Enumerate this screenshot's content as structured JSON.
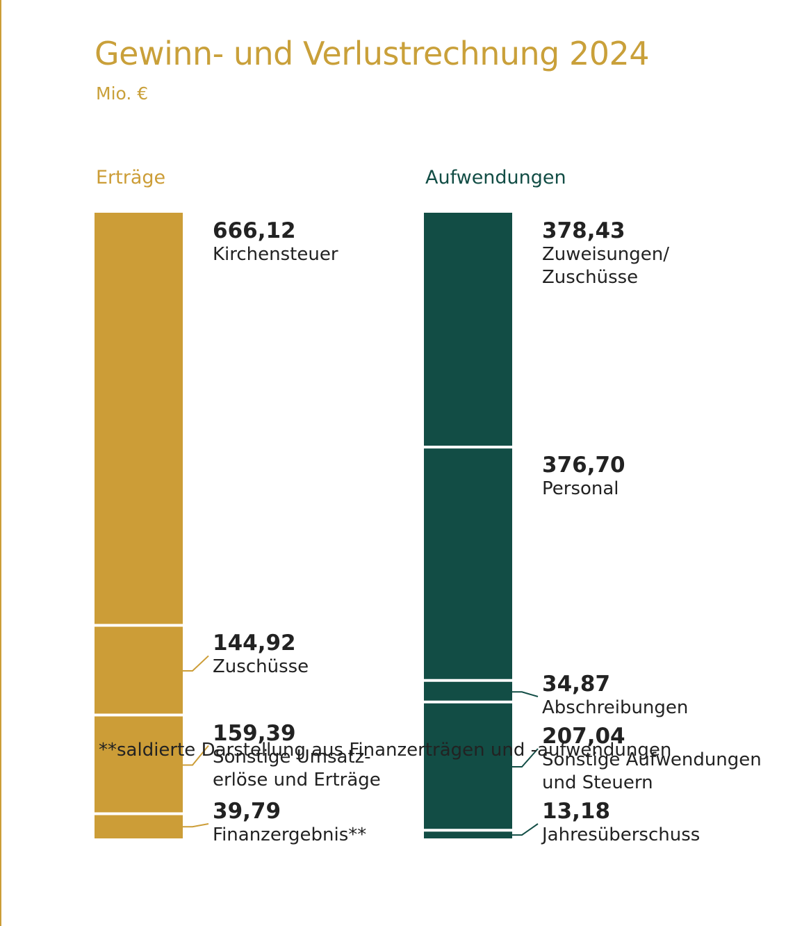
{
  "title": "Gewinn- und Verlustrechnung 2024",
  "subtitle": "Mio. €",
  "footnote": "**saldierte Darstellung aus Finanzerträgen und -aufwendungen",
  "chart_data": [
    {
      "type": "stacked-column",
      "title": "Erträge",
      "color": "#cc9d37",
      "categories": [
        "Kirchensteuer",
        "Zuschüsse",
        "Sonstige Umsatz-\nerlöse und Erträge",
        "Finanzergebnis**"
      ],
      "values": [
        666.12,
        144.92,
        159.39,
        39.79
      ],
      "value_labels": [
        "666,12",
        "144,92",
        "159,39",
        "39,79"
      ]
    },
    {
      "type": "stacked-column",
      "title": "Aufwendungen",
      "color": "#124d45",
      "categories": [
        "Zuweisungen/\nZuschüsse",
        "Personal",
        "Abschreibungen",
        "Sonstige Aufwendungen\nund Steuern",
        "Jahresüberschuss"
      ],
      "values": [
        378.43,
        376.7,
        34.87,
        207.04,
        13.18
      ],
      "value_labels": [
        "378,43",
        "376,70",
        "34,87",
        "207,04",
        "13,18"
      ]
    }
  ]
}
